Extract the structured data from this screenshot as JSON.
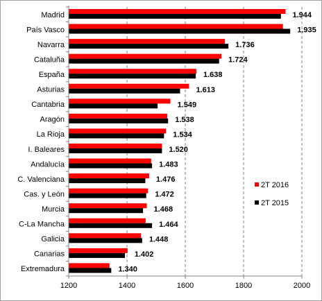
{
  "chart_data": {
    "type": "bar",
    "orientation": "horizontal",
    "categories": [
      "Madrid",
      "País Vasco",
      "Navarra",
      "Cataluña",
      "España",
      "Asturias",
      "Cantabria",
      "Aragón",
      "La Rioja",
      "I. Baleares",
      "Andalucía",
      "C. Valenciana",
      "Cas. y León",
      "Murcia",
      "C-La Mancha",
      "Galicia",
      "Canarias",
      "Extremadura"
    ],
    "series": [
      {
        "name": "2T 2016",
        "color": "#ff0000",
        "values": [
          1944,
          1935,
          1736,
          1724,
          1638,
          1613,
          1549,
          1538,
          1534,
          1520,
          1483,
          1476,
          1472,
          1468,
          1464,
          1448,
          1402,
          1340
        ]
      },
      {
        "name": "2T 2015",
        "color": "#000000",
        "values": [
          1928,
          1960,
          1748,
          1716,
          1636,
          1582,
          1505,
          1541,
          1527,
          1520,
          1486,
          1463,
          1466,
          1455,
          1486,
          1452,
          1393,
          1346
        ]
      }
    ],
    "data_labels": [
      "1.944",
      "1.935",
      "1.736",
      "1.724",
      "1.638",
      "1.613",
      "1.549",
      "1.538",
      "1.534",
      "1.520",
      "1.483",
      "1.476",
      "1.472",
      "1.468",
      "1.464",
      "1.448",
      "1.402",
      "1.340"
    ],
    "xlim": [
      1200,
      2000
    ],
    "x_ticks": [
      "1200",
      "1400",
      "1600",
      "1800",
      "2000"
    ],
    "grid": "vertical dashed",
    "legend_position": "right",
    "title": "",
    "xlabel": "",
    "ylabel": ""
  }
}
